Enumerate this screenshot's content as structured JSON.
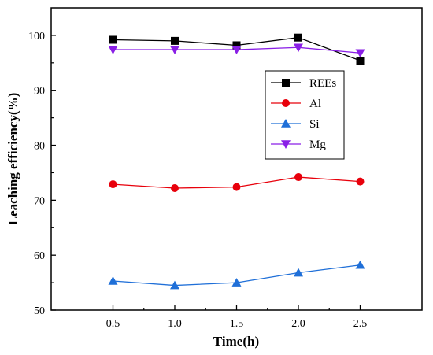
{
  "chart_data": {
    "type": "line",
    "title": "",
    "xlabel": "Time(h)",
    "ylabel": "Leaching efficiency(%)",
    "x": [
      0.5,
      1.0,
      1.5,
      2.0,
      2.5
    ],
    "x_tick_labels": [
      "0.5",
      "1.0",
      "1.5",
      "2.0",
      "2.5"
    ],
    "xlim": [
      0.0,
      3.0
    ],
    "ylim": [
      50,
      105
    ],
    "y_ticks": [
      50,
      60,
      70,
      80,
      90,
      100
    ],
    "y_tick_labels": [
      "50",
      "60",
      "70",
      "80",
      "90",
      "100"
    ],
    "grid": false,
    "legend_position": "right",
    "series": [
      {
        "name": "REEs",
        "values": [
          99.2,
          99.0,
          98.2,
          99.6,
          95.4
        ],
        "color": "#000000",
        "marker": "square"
      },
      {
        "name": "Al",
        "values": [
          72.9,
          72.2,
          72.4,
          74.2,
          73.4
        ],
        "color": "#e8000b",
        "marker": "circle"
      },
      {
        "name": "Si",
        "values": [
          55.3,
          54.5,
          55.0,
          56.8,
          58.2
        ],
        "color": "#1f6fd8",
        "marker": "triangle-up"
      },
      {
        "name": "Mg",
        "values": [
          97.4,
          97.4,
          97.4,
          97.8,
          96.8
        ],
        "color": "#8a1fe6",
        "marker": "triangle-down"
      }
    ]
  }
}
